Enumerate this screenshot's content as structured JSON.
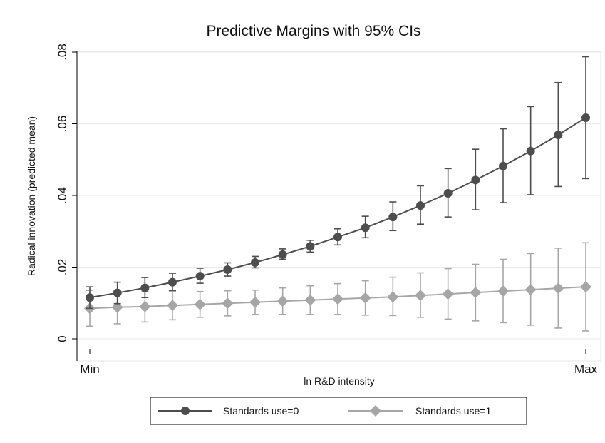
{
  "chart_data": {
    "type": "line",
    "title": "Predictive Margins with 95% CIs",
    "xlabel": "ln R&D intensity",
    "ylabel": "Radical innovation (predicted mean)",
    "ylim": [
      0,
      0.08
    ],
    "yticks": [
      {
        "value": 0,
        "label": "0"
      },
      {
        "value": 0.02,
        "label": ".02"
      },
      {
        "value": 0.04,
        "label": ".04"
      },
      {
        "value": 0.06,
        "label": ".06"
      },
      {
        "value": 0.08,
        "label": ".08"
      }
    ],
    "xticks": [
      {
        "index": 0,
        "label": "Min"
      },
      {
        "index": 20,
        "label": "Max"
      }
    ],
    "grid": true,
    "legend_position": "bottom",
    "series": [
      {
        "name": "Standards use=0",
        "color": "#4d4d4d",
        "marker": "circle",
        "values": [
          0.0115,
          0.0128,
          0.0142,
          0.0158,
          0.0175,
          0.0193,
          0.0213,
          0.0235,
          0.0258,
          0.0284,
          0.031,
          0.034,
          0.0372,
          0.0406,
          0.0443,
          0.0482,
          0.0524,
          0.0569,
          0.0617
        ],
        "ci_low": [
          0.0085,
          0.0098,
          0.0115,
          0.0135,
          0.0155,
          0.0175,
          0.0198,
          0.0222,
          0.0242,
          0.0262,
          0.0282,
          0.0302,
          0.032,
          0.034,
          0.036,
          0.038,
          0.0402,
          0.0425,
          0.0447
        ],
        "ci_high": [
          0.0145,
          0.0158,
          0.0171,
          0.0183,
          0.0197,
          0.0212,
          0.023,
          0.0251,
          0.0275,
          0.0307,
          0.0342,
          0.0382,
          0.0427,
          0.0475,
          0.0529,
          0.0586,
          0.0648,
          0.0715,
          0.0787
        ]
      },
      {
        "name": "Standards use=1",
        "color": "#a6a6a6",
        "marker": "diamond",
        "values": [
          0.0085,
          0.0088,
          0.009,
          0.0093,
          0.0096,
          0.0099,
          0.0102,
          0.0105,
          0.0108,
          0.0111,
          0.0114,
          0.0117,
          0.0121,
          0.0125,
          0.0129,
          0.0133,
          0.0137,
          0.0141,
          0.0145
        ],
        "ci_low": [
          0.0035,
          0.0042,
          0.0047,
          0.0053,
          0.006,
          0.0064,
          0.0068,
          0.0068,
          0.0068,
          0.0068,
          0.0066,
          0.0065,
          0.006,
          0.0055,
          0.005,
          0.0045,
          0.0038,
          0.003,
          0.0022
        ],
        "ci_high": [
          0.0135,
          0.0134,
          0.0133,
          0.0133,
          0.0132,
          0.0134,
          0.0136,
          0.0142,
          0.0148,
          0.0154,
          0.0162,
          0.0172,
          0.0184,
          0.0196,
          0.0208,
          0.0222,
          0.0238,
          0.0253,
          0.0268
        ]
      }
    ]
  }
}
